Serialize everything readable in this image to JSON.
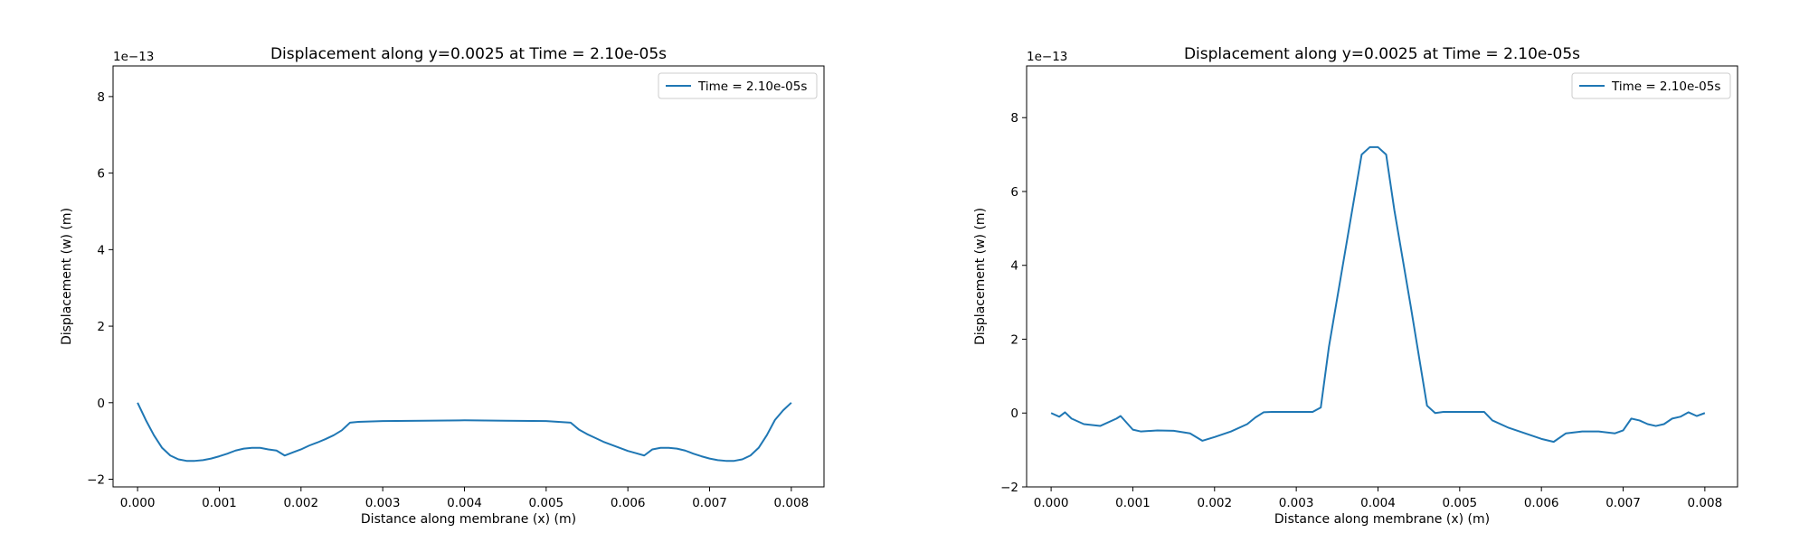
{
  "chart_data": [
    {
      "type": "line",
      "title": "Displacement along y=0.0025 at Time = 2.10e-05s",
      "xlabel": "Distance along membrane (x) (m)",
      "ylabel": "Displacement (w) (m)",
      "offset_text": "1e−13",
      "xlim": [
        -0.0003,
        0.0084
      ],
      "ylim": [
        -2.2,
        8.8
      ],
      "xticks": [
        0,
        0.001,
        0.002,
        0.003,
        0.004,
        0.005,
        0.006,
        0.007,
        0.008
      ],
      "xtick_labels": [
        "0.000",
        "0.001",
        "0.002",
        "0.003",
        "0.004",
        "0.005",
        "0.006",
        "0.007",
        "0.008"
      ],
      "yticks": [
        -2,
        0,
        2,
        4,
        6,
        8
      ],
      "ytick_labels": [
        "−2",
        "0",
        "2",
        "4",
        "6",
        "8"
      ],
      "grid": false,
      "legend_position": "top-right",
      "series": [
        {
          "name": "Time = 2.10e-05s",
          "color": "#1f77b4",
          "x": [
            0,
            0.0001,
            0.0002,
            0.0003,
            0.0004,
            0.0005,
            0.0006,
            0.0007,
            0.0008,
            0.0009,
            0.001,
            0.0011,
            0.0012,
            0.0013,
            0.0014,
            0.0015,
            0.0016,
            0.0017,
            0.0018,
            0.0019,
            0.002,
            0.0021,
            0.0022,
            0.0023,
            0.0024,
            0.0025,
            0.0026,
            0.0027,
            0.003,
            0.0035,
            0.004,
            0.0045,
            0.005,
            0.0053,
            0.0054,
            0.0055,
            0.0056,
            0.0057,
            0.0058,
            0.0059,
            0.006,
            0.0061,
            0.0062,
            0.0063,
            0.0064,
            0.0065,
            0.0066,
            0.0067,
            0.0068,
            0.0069,
            0.007,
            0.0071,
            0.0072,
            0.0073,
            0.0074,
            0.0075,
            0.0076,
            0.0077,
            0.0078,
            0.0079,
            0.008
          ],
          "y": [
            0,
            -0.45,
            -0.85,
            -1.18,
            -1.38,
            -1.48,
            -1.52,
            -1.52,
            -1.5,
            -1.46,
            -1.4,
            -1.33,
            -1.25,
            -1.2,
            -1.18,
            -1.18,
            -1.22,
            -1.25,
            -1.38,
            -1.3,
            -1.22,
            -1.12,
            -1.04,
            -0.95,
            -0.85,
            -0.72,
            -0.52,
            -0.5,
            -0.48,
            -0.47,
            -0.46,
            -0.47,
            -0.48,
            -0.52,
            -0.7,
            -0.82,
            -0.92,
            -1.02,
            -1.1,
            -1.18,
            -1.26,
            -1.32,
            -1.38,
            -1.22,
            -1.18,
            -1.18,
            -1.2,
            -1.25,
            -1.33,
            -1.4,
            -1.46,
            -1.5,
            -1.52,
            -1.52,
            -1.48,
            -1.38,
            -1.18,
            -0.85,
            -0.45,
            -0.2,
            0
          ]
        }
      ]
    },
    {
      "type": "line",
      "title": "Displacement along y=0.0025 at Time = 2.10e-05s",
      "xlabel": "Distance along membrane (x) (m)",
      "ylabel": "Displacement (w) (m)",
      "offset_text": "1e−13",
      "xlim": [
        -0.0003,
        0.0084
      ],
      "ylim": [
        -2.0,
        9.4
      ],
      "xticks": [
        0,
        0.001,
        0.002,
        0.003,
        0.004,
        0.005,
        0.006,
        0.007,
        0.008
      ],
      "xtick_labels": [
        "0.000",
        "0.001",
        "0.002",
        "0.003",
        "0.004",
        "0.005",
        "0.006",
        "0.007",
        "0.008"
      ],
      "yticks": [
        -2,
        0,
        2,
        4,
        6,
        8
      ],
      "ytick_labels": [
        "−2",
        "0",
        "2",
        "4",
        "6",
        "8"
      ],
      "grid": false,
      "legend_position": "top-right",
      "series": [
        {
          "name": "Time = 2.10e-05s",
          "color": "#1f77b4",
          "x": [
            0,
            0.0001,
            0.00017,
            0.00025,
            0.0004,
            0.0006,
            0.0008,
            0.00085,
            0.001,
            0.0011,
            0.0013,
            0.0015,
            0.0017,
            0.00185,
            0.002,
            0.0022,
            0.0024,
            0.0025,
            0.0026,
            0.0027,
            0.003,
            0.0032,
            0.0033,
            0.0034,
            0.0036,
            0.0038,
            0.0039,
            0.004,
            0.0041,
            0.0042,
            0.0044,
            0.0046,
            0.0047,
            0.0048,
            0.005,
            0.0052,
            0.0053,
            0.0054,
            0.0056,
            0.0058,
            0.006,
            0.00615,
            0.0063,
            0.0065,
            0.0067,
            0.0069,
            0.007,
            0.0071,
            0.0072,
            0.0073,
            0.0074,
            0.0075,
            0.0076,
            0.0077,
            0.0078,
            0.0079,
            0.008
          ],
          "y": [
            0,
            -0.1,
            0.02,
            -0.15,
            -0.3,
            -0.35,
            -0.15,
            -0.08,
            -0.45,
            -0.5,
            -0.47,
            -0.48,
            -0.55,
            -0.75,
            -0.65,
            -0.5,
            -0.3,
            -0.12,
            0.02,
            0.03,
            0.03,
            0.03,
            0.15,
            1.8,
            4.4,
            7.0,
            7.2,
            7.2,
            7.0,
            5.5,
            2.9,
            0.2,
            0.0,
            0.03,
            0.03,
            0.03,
            0.03,
            -0.2,
            -0.4,
            -0.55,
            -0.7,
            -0.78,
            -0.55,
            -0.5,
            -0.5,
            -0.55,
            -0.47,
            -0.15,
            -0.2,
            -0.3,
            -0.35,
            -0.3,
            -0.15,
            -0.1,
            0.02,
            -0.08,
            0
          ]
        }
      ]
    }
  ]
}
